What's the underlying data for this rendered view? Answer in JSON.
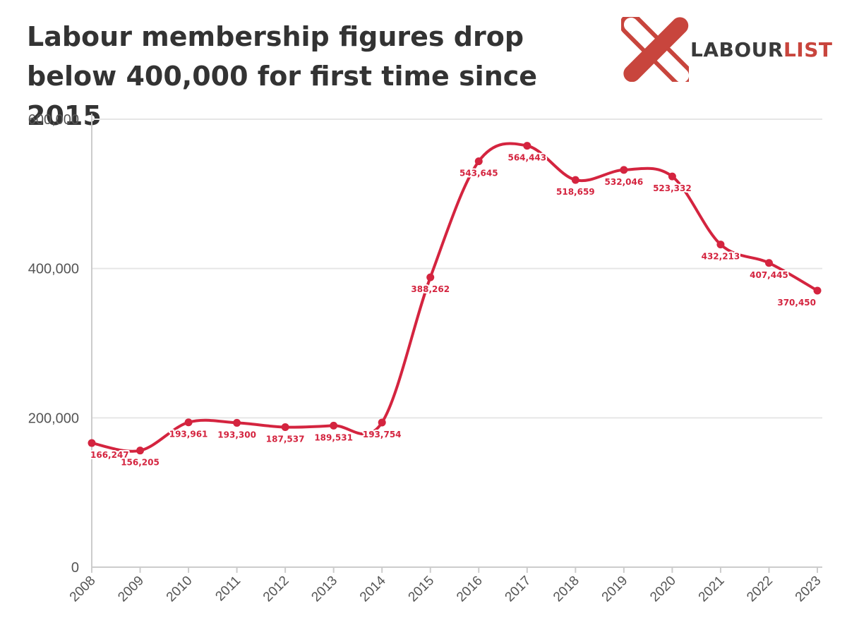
{
  "header": {
    "title": "Labour membership figures drop below 400,000 for first time since 2015"
  },
  "brand": {
    "name_part1": "LABOUR",
    "name_part2": "LIST",
    "dark_color": "#3a3a3a",
    "accent_color": "#c8453d",
    "logo_icon": "cross-x-icon"
  },
  "colors": {
    "series": "#d4243f",
    "grid": "#e6e6e6",
    "axis": "#cccccc"
  },
  "chart_data": {
    "type": "line",
    "title": "Labour membership figures drop below 400,000 for first time since 2015",
    "xlabel": "",
    "ylabel": "",
    "ylim": [
      0,
      600000
    ],
    "yticks": [
      0,
      200000,
      400000,
      600000
    ],
    "ytick_labels": [
      "0",
      "200,000",
      "400,000",
      "600,000"
    ],
    "grid": true,
    "categories": [
      "2008",
      "2009",
      "2010",
      "2011",
      "2012",
      "2013",
      "2014",
      "2015",
      "2016",
      "2017",
      "2018",
      "2019",
      "2020",
      "2021",
      "2022",
      "2023"
    ],
    "series": [
      {
        "name": "Labour membership",
        "values": [
          166247,
          156205,
          193961,
          193300,
          187537,
          189531,
          193754,
          388262,
          543645,
          564443,
          518659,
          532046,
          523332,
          432213,
          407445,
          370450
        ],
        "labels": [
          "166,247",
          "156,205",
          "193,961",
          "193,300",
          "187,537",
          "189,531",
          "193,754",
          "388,262",
          "543,645",
          "564,443",
          "518,659",
          "532,046",
          "523,332",
          "432,213",
          "407,445",
          "370,450"
        ]
      }
    ]
  }
}
